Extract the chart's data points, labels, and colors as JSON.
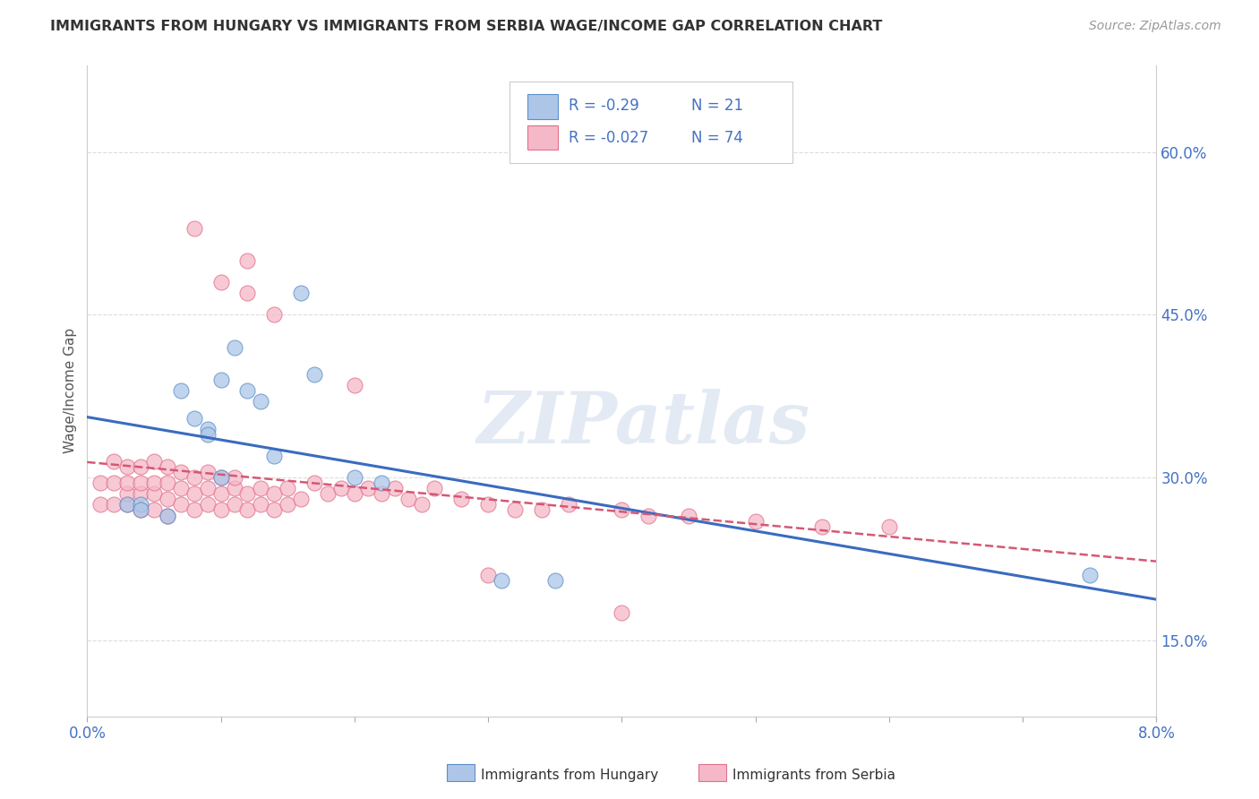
{
  "title": "IMMIGRANTS FROM HUNGARY VS IMMIGRANTS FROM SERBIA WAGE/INCOME GAP CORRELATION CHART",
  "source": "Source: ZipAtlas.com",
  "ylabel": "Wage/Income Gap",
  "xlim": [
    0.0,
    0.08
  ],
  "ylim": [
    0.08,
    0.68
  ],
  "xticks": [
    0.0,
    0.01,
    0.02,
    0.03,
    0.04,
    0.05,
    0.06,
    0.07,
    0.08
  ],
  "xtick_labels_bottom": [
    "0.0%",
    "",
    "",
    "",
    "",
    "",
    "",
    "",
    "8.0%"
  ],
  "yticks_right": [
    0.15,
    0.3,
    0.45,
    0.6
  ],
  "ytick_labels_right": [
    "15.0%",
    "30.0%",
    "45.0%",
    "60.0%"
  ],
  "hungary_R": -0.29,
  "hungary_N": 21,
  "serbia_R": -0.027,
  "serbia_N": 74,
  "hungary_color": "#adc6e8",
  "serbia_color": "#f5b8c8",
  "hungary_edge_color": "#5b8fc9",
  "serbia_edge_color": "#e0708a",
  "hungary_line_color": "#3a6bbf",
  "serbia_line_color": "#d45875",
  "watermark": "ZIPatlas",
  "hungary_x": [
    0.003,
    0.004,
    0.004,
    0.006,
    0.007,
    0.008,
    0.009,
    0.009,
    0.01,
    0.01,
    0.011,
    0.012,
    0.013,
    0.014,
    0.016,
    0.017,
    0.02,
    0.022,
    0.031,
    0.035,
    0.075
  ],
  "hungary_y": [
    0.275,
    0.275,
    0.27,
    0.265,
    0.38,
    0.355,
    0.345,
    0.34,
    0.3,
    0.39,
    0.42,
    0.38,
    0.37,
    0.32,
    0.47,
    0.395,
    0.3,
    0.295,
    0.205,
    0.205,
    0.21
  ],
  "serbia_x": [
    0.001,
    0.001,
    0.002,
    0.002,
    0.002,
    0.003,
    0.003,
    0.003,
    0.003,
    0.004,
    0.004,
    0.004,
    0.004,
    0.005,
    0.005,
    0.005,
    0.005,
    0.006,
    0.006,
    0.006,
    0.006,
    0.007,
    0.007,
    0.007,
    0.008,
    0.008,
    0.008,
    0.009,
    0.009,
    0.009,
    0.01,
    0.01,
    0.01,
    0.011,
    0.011,
    0.011,
    0.012,
    0.012,
    0.013,
    0.013,
    0.014,
    0.014,
    0.015,
    0.015,
    0.016,
    0.017,
    0.018,
    0.019,
    0.02,
    0.021,
    0.022,
    0.023,
    0.024,
    0.025,
    0.026,
    0.028,
    0.03,
    0.032,
    0.034,
    0.036,
    0.04,
    0.042,
    0.045,
    0.05,
    0.055,
    0.06,
    0.012,
    0.01,
    0.008,
    0.012,
    0.014,
    0.02,
    0.03,
    0.04
  ],
  "serbia_y": [
    0.275,
    0.295,
    0.275,
    0.295,
    0.315,
    0.275,
    0.285,
    0.295,
    0.31,
    0.27,
    0.285,
    0.295,
    0.31,
    0.27,
    0.285,
    0.295,
    0.315,
    0.265,
    0.28,
    0.295,
    0.31,
    0.275,
    0.29,
    0.305,
    0.27,
    0.285,
    0.3,
    0.275,
    0.29,
    0.305,
    0.27,
    0.285,
    0.3,
    0.275,
    0.29,
    0.3,
    0.27,
    0.285,
    0.275,
    0.29,
    0.27,
    0.285,
    0.275,
    0.29,
    0.28,
    0.295,
    0.285,
    0.29,
    0.285,
    0.29,
    0.285,
    0.29,
    0.28,
    0.275,
    0.29,
    0.28,
    0.275,
    0.27,
    0.27,
    0.275,
    0.27,
    0.265,
    0.265,
    0.26,
    0.255,
    0.255,
    0.47,
    0.48,
    0.53,
    0.5,
    0.45,
    0.385,
    0.21,
    0.175
  ],
  "grid_color": "#dddddd",
  "grid_linewidth": 0.8
}
